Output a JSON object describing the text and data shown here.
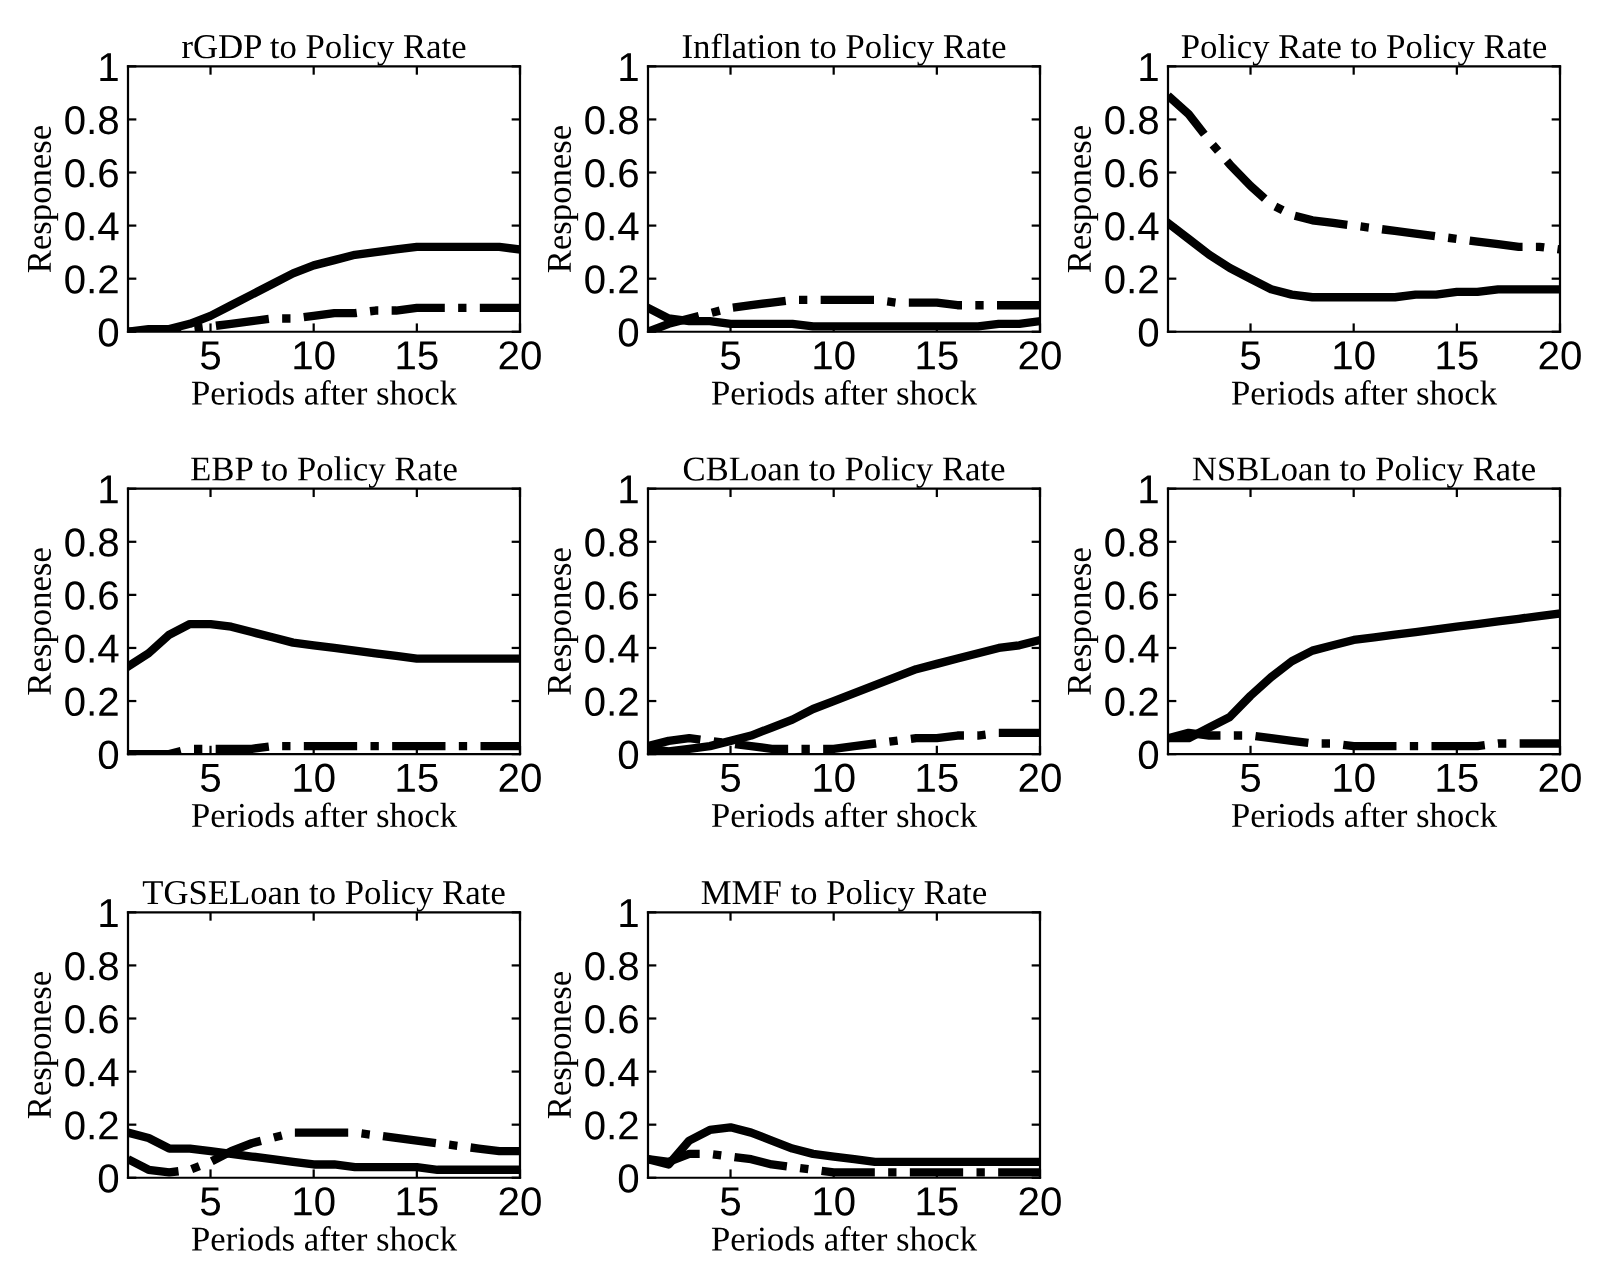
{
  "chart_data": [
    {
      "type": "line",
      "title": "rGDP to Policy Rate",
      "xlabel": "Periods after shock",
      "ylabel": "Responese",
      "x": [
        1,
        2,
        3,
        4,
        5,
        6,
        7,
        8,
        9,
        10,
        11,
        12,
        13,
        14,
        15,
        16,
        17,
        18,
        19,
        20
      ],
      "xlim": [
        1,
        20
      ],
      "xticks": [
        5,
        10,
        15,
        20
      ],
      "ylim": [
        0,
        1
      ],
      "yticks": [
        0,
        0.2,
        0.4,
        0.6,
        0.8,
        1
      ],
      "series": [
        {
          "color": "#000000",
          "line_style": "solid",
          "values": [
            0,
            0.01,
            0.01,
            0.03,
            0.06,
            0.1,
            0.14,
            0.18,
            0.22,
            0.25,
            0.27,
            0.29,
            0.3,
            0.31,
            0.32,
            0.32,
            0.32,
            0.32,
            0.32,
            0.31
          ]
        },
        {
          "color": "#000000",
          "line_style": "dashdot",
          "values": [
            0,
            0,
            0.01,
            0.01,
            0.02,
            0.03,
            0.04,
            0.05,
            0.05,
            0.06,
            0.07,
            0.07,
            0.08,
            0.08,
            0.09,
            0.09,
            0.09,
            0.09,
            0.09,
            0.09
          ]
        }
      ]
    },
    {
      "type": "line",
      "title": "Inflation to Policy Rate",
      "xlabel": "Periods after shock",
      "ylabel": "Responese",
      "x": [
        1,
        2,
        3,
        4,
        5,
        6,
        7,
        8,
        9,
        10,
        11,
        12,
        13,
        14,
        15,
        16,
        17,
        18,
        19,
        20
      ],
      "xlim": [
        1,
        20
      ],
      "xticks": [
        5,
        10,
        15,
        20
      ],
      "ylim": [
        0,
        1
      ],
      "yticks": [
        0,
        0.2,
        0.4,
        0.6,
        0.8,
        1
      ],
      "series": [
        {
          "color": "#000000",
          "line_style": "solid",
          "values": [
            0.09,
            0.05,
            0.04,
            0.04,
            0.03,
            0.03,
            0.03,
            0.03,
            0.02,
            0.02,
            0.02,
            0.02,
            0.02,
            0.02,
            0.02,
            0.02,
            0.02,
            0.03,
            0.03,
            0.04
          ]
        },
        {
          "color": "#000000",
          "line_style": "dashdot",
          "values": [
            0,
            0.03,
            0.05,
            0.07,
            0.09,
            0.1,
            0.11,
            0.12,
            0.12,
            0.12,
            0.12,
            0.12,
            0.11,
            0.11,
            0.11,
            0.1,
            0.1,
            0.1,
            0.1,
            0.1
          ]
        }
      ]
    },
    {
      "type": "line",
      "title": "Policy Rate to Policy Rate",
      "xlabel": "Periods after shock",
      "ylabel": "Responese",
      "x": [
        1,
        2,
        3,
        4,
        5,
        6,
        7,
        8,
        9,
        10,
        11,
        12,
        13,
        14,
        15,
        16,
        17,
        18,
        19,
        20
      ],
      "xlim": [
        1,
        20
      ],
      "xticks": [
        5,
        10,
        15,
        20
      ],
      "ylim": [
        0,
        1
      ],
      "yticks": [
        0,
        0.2,
        0.4,
        0.6,
        0.8,
        1
      ],
      "series": [
        {
          "color": "#000000",
          "line_style": "solid",
          "values": [
            0.41,
            0.35,
            0.29,
            0.24,
            0.2,
            0.16,
            0.14,
            0.13,
            0.13,
            0.13,
            0.13,
            0.13,
            0.14,
            0.14,
            0.15,
            0.15,
            0.16,
            0.16,
            0.16,
            0.16
          ]
        },
        {
          "color": "#000000",
          "line_style": "dashdot",
          "values": [
            0.89,
            0.82,
            0.72,
            0.63,
            0.55,
            0.48,
            0.44,
            0.42,
            0.41,
            0.4,
            0.39,
            0.38,
            0.37,
            0.36,
            0.35,
            0.34,
            0.33,
            0.32,
            0.32,
            0.31
          ]
        }
      ]
    },
    {
      "type": "line",
      "title": "EBP to Policy Rate",
      "xlabel": "Periods after shock",
      "ylabel": "Responese",
      "x": [
        1,
        2,
        3,
        4,
        5,
        6,
        7,
        8,
        9,
        10,
        11,
        12,
        13,
        14,
        15,
        16,
        17,
        18,
        19,
        20
      ],
      "xlim": [
        1,
        20
      ],
      "xticks": [
        5,
        10,
        15,
        20
      ],
      "ylim": [
        0,
        1
      ],
      "yticks": [
        0,
        0.2,
        0.4,
        0.6,
        0.8,
        1
      ],
      "series": [
        {
          "color": "#000000",
          "line_style": "solid",
          "values": [
            0.33,
            0.38,
            0.45,
            0.49,
            0.49,
            0.48,
            0.46,
            0.44,
            0.42,
            0.41,
            0.4,
            0.39,
            0.38,
            0.37,
            0.36,
            0.36,
            0.36,
            0.36,
            0.36,
            0.36
          ]
        },
        {
          "color": "#000000",
          "line_style": "dashdot",
          "values": [
            0,
            0,
            0,
            0.02,
            0.02,
            0.02,
            0.02,
            0.03,
            0.03,
            0.03,
            0.03,
            0.03,
            0.03,
            0.03,
            0.03,
            0.03,
            0.03,
            0.03,
            0.03,
            0.03
          ]
        }
      ]
    },
    {
      "type": "line",
      "title": "CBLoan to Policy Rate",
      "xlabel": "Periods after shock",
      "ylabel": "Responese",
      "x": [
        1,
        2,
        3,
        4,
        5,
        6,
        7,
        8,
        9,
        10,
        11,
        12,
        13,
        14,
        15,
        16,
        17,
        18,
        19,
        20
      ],
      "xlim": [
        1,
        20
      ],
      "xticks": [
        5,
        10,
        15,
        20
      ],
      "ylim": [
        0,
        1
      ],
      "yticks": [
        0,
        0.2,
        0.4,
        0.6,
        0.8,
        1
      ],
      "series": [
        {
          "color": "#000000",
          "line_style": "solid",
          "values": [
            0.02,
            0.01,
            0.02,
            0.03,
            0.05,
            0.07,
            0.1,
            0.13,
            0.17,
            0.2,
            0.23,
            0.26,
            0.29,
            0.32,
            0.34,
            0.36,
            0.38,
            0.4,
            0.41,
            0.43
          ]
        },
        {
          "color": "#000000",
          "line_style": "dashdot",
          "values": [
            0.03,
            0.05,
            0.06,
            0.05,
            0.04,
            0.03,
            0.02,
            0.02,
            0.02,
            0.02,
            0.03,
            0.04,
            0.05,
            0.06,
            0.06,
            0.07,
            0.07,
            0.08,
            0.08,
            0.08
          ]
        }
      ]
    },
    {
      "type": "line",
      "title": "NSBLoan to Policy Rate",
      "xlabel": "Periods after shock",
      "ylabel": "Responese",
      "x": [
        1,
        2,
        3,
        4,
        5,
        6,
        7,
        8,
        9,
        10,
        11,
        12,
        13,
        14,
        15,
        16,
        17,
        18,
        19,
        20
      ],
      "xlim": [
        1,
        20
      ],
      "xticks": [
        5,
        10,
        15,
        20
      ],
      "ylim": [
        0,
        1
      ],
      "yticks": [
        0,
        0.2,
        0.4,
        0.6,
        0.8,
        1
      ],
      "series": [
        {
          "color": "#000000",
          "line_style": "solid",
          "values": [
            0.06,
            0.06,
            0.1,
            0.14,
            0.22,
            0.29,
            0.35,
            0.39,
            0.41,
            0.43,
            0.44,
            0.45,
            0.46,
            0.47,
            0.48,
            0.49,
            0.5,
            0.51,
            0.52,
            0.53
          ]
        },
        {
          "color": "#000000",
          "line_style": "dashdot",
          "values": [
            0.06,
            0.08,
            0.07,
            0.07,
            0.07,
            0.06,
            0.05,
            0.04,
            0.04,
            0.03,
            0.03,
            0.03,
            0.03,
            0.03,
            0.03,
            0.03,
            0.04,
            0.04,
            0.04,
            0.04
          ]
        }
      ]
    },
    {
      "type": "line",
      "title": "TGSELoan to Policy Rate",
      "xlabel": "Periods after shock",
      "ylabel": "Responese",
      "x": [
        1,
        2,
        3,
        4,
        5,
        6,
        7,
        8,
        9,
        10,
        11,
        12,
        13,
        14,
        15,
        16,
        17,
        18,
        19,
        20
      ],
      "xlim": [
        1,
        20
      ],
      "xticks": [
        5,
        10,
        15,
        20
      ],
      "ylim": [
        0,
        1
      ],
      "yticks": [
        0,
        0.2,
        0.4,
        0.6,
        0.8,
        1
      ],
      "series": [
        {
          "color": "#000000",
          "line_style": "solid",
          "values": [
            0.17,
            0.15,
            0.11,
            0.11,
            0.1,
            0.09,
            0.08,
            0.07,
            0.06,
            0.05,
            0.05,
            0.04,
            0.04,
            0.04,
            0.04,
            0.03,
            0.03,
            0.03,
            0.03,
            0.03
          ]
        },
        {
          "color": "#000000",
          "line_style": "dashdot",
          "values": [
            0.07,
            0.03,
            0.02,
            0.03,
            0.06,
            0.1,
            0.13,
            0.15,
            0.17,
            0.17,
            0.17,
            0.17,
            0.16,
            0.15,
            0.14,
            0.13,
            0.12,
            0.11,
            0.1,
            0.1
          ]
        }
      ]
    },
    {
      "type": "line",
      "title": "MMF to Policy Rate",
      "xlabel": "Periods after shock",
      "ylabel": "Responese",
      "x": [
        1,
        2,
        3,
        4,
        5,
        6,
        7,
        8,
        9,
        10,
        11,
        12,
        13,
        14,
        15,
        16,
        17,
        18,
        19,
        20
      ],
      "xlim": [
        1,
        20
      ],
      "xticks": [
        5,
        10,
        15,
        20
      ],
      "ylim": [
        0,
        1
      ],
      "yticks": [
        0,
        0.2,
        0.4,
        0.6,
        0.8,
        1
      ],
      "series": [
        {
          "color": "#000000",
          "line_style": "solid",
          "values": [
            0.07,
            0.05,
            0.14,
            0.18,
            0.19,
            0.17,
            0.14,
            0.11,
            0.09,
            0.08,
            0.07,
            0.06,
            0.06,
            0.06,
            0.06,
            0.06,
            0.06,
            0.06,
            0.06,
            0.06
          ]
        },
        {
          "color": "#000000",
          "line_style": "dashdot",
          "values": [
            0.07,
            0.06,
            0.09,
            0.09,
            0.08,
            0.07,
            0.05,
            0.04,
            0.03,
            0.02,
            0.02,
            0.02,
            0.02,
            0.02,
            0.02,
            0.02,
            0.02,
            0.02,
            0.02,
            0.02
          ]
        }
      ]
    }
  ]
}
